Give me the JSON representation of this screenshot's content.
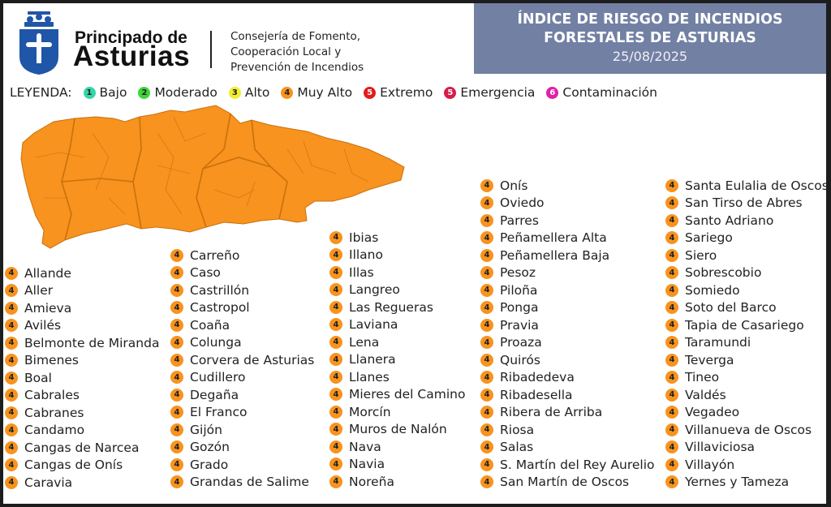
{
  "header": {
    "brand_line1": "Principado de",
    "brand_line2": "Asturias",
    "department": [
      "Consejería de Fomento,",
      "Cooperación Local y",
      "Prevención de Incendios"
    ],
    "title_line1": "ÍNDICE DE RIESGO DE INCENDIOS",
    "title_line2": "FORESTALES DE ASTURIAS",
    "date": "25/08/2025"
  },
  "legend": {
    "label": "LEYENDA:",
    "items": [
      {
        "level": "1",
        "name": "Bajo",
        "color": "#35d6a8"
      },
      {
        "level": "2",
        "name": "Moderado",
        "color": "#3ed43a"
      },
      {
        "level": "3",
        "name": "Alto",
        "color": "#f2ee2f"
      },
      {
        "level": "4",
        "name": "Muy Alto",
        "color": "#f7931e"
      },
      {
        "level": "5",
        "name": "Extremo",
        "color": "#e21b1b"
      },
      {
        "level": "5",
        "name": "Emergencia",
        "color": "#d81b4a"
      },
      {
        "level": "6",
        "name": "Contaminación",
        "color": "#e020a8"
      }
    ]
  },
  "map": {
    "fill_color": "#f7931e",
    "border_color": "#c9700f"
  },
  "municipality_level": "4",
  "columns": [
    [
      "Allande",
      "Aller",
      "Amieva",
      "Avilés",
      "Belmonte de Miranda",
      "Bimenes",
      "Boal",
      "Cabrales",
      "Cabranes",
      "Candamo",
      "Cangas de Narcea",
      "Cangas de Onís",
      "Caravia"
    ],
    [
      "Carreño",
      "Caso",
      "Castrillón",
      "Castropol",
      "Coaña",
      "Colunga",
      "Corvera de Asturias",
      "Cudillero",
      "Degaña",
      "El Franco",
      "Gijón",
      "Gozón",
      "Grado",
      "Grandas de Salime"
    ],
    [
      "Ibias",
      "Illano",
      "Illas",
      "Langreo",
      "Las Regueras",
      "Laviana",
      "Lena",
      "Llanera",
      "Llanes",
      "Mieres del Camino",
      "Morcín",
      "Muros de Nalón",
      "Nava",
      "Navia",
      "Noreña"
    ],
    [
      "Onís",
      "Oviedo",
      "Parres",
      "Peñamellera Alta",
      "Peñamellera Baja",
      "Pesoz",
      "Piloña",
      "Ponga",
      "Pravia",
      "Proaza",
      "Quirós",
      "Ribadedeva",
      "Ribadesella",
      "Ribera de Arriba",
      "Riosa",
      "Salas",
      "S. Martín del Rey Aurelio",
      "San Martín de Oscos"
    ],
    [
      "Santa Eulalia de Oscos",
      "San Tirso de Abres",
      "Santo Adriano",
      "Sariego",
      "Siero",
      "Sobrescobio",
      "Somiedo",
      "Soto del Barco",
      "Tapia de Casariego",
      "Taramundi",
      "Teverga",
      "Tineo",
      "Valdés",
      "Vegadeo",
      "Villanueva de Oscos",
      "Villaviciosa",
      "Villayón",
      "Yernes y Tameza"
    ]
  ]
}
